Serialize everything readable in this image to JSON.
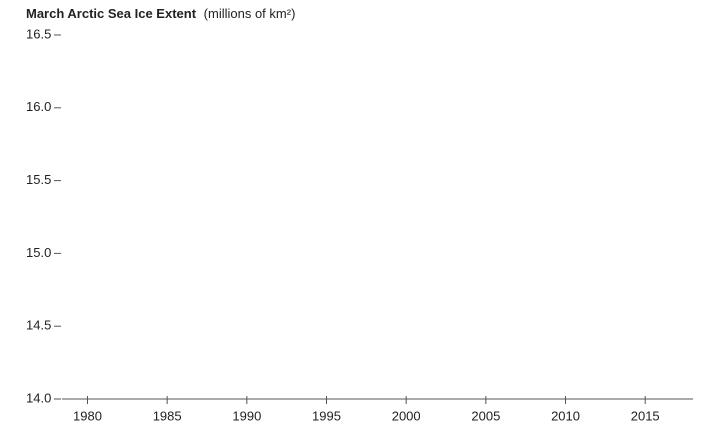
{
  "chart_data": {
    "type": "line",
    "title": "March Arctic Sea Ice Extent",
    "y_label": "(millions of km²)",
    "xlim": [
      1978.4,
      2018
    ],
    "xticks": [
      1980,
      1985,
      1990,
      1995,
      2000,
      2005,
      2010,
      2015
    ],
    "ylim": [
      14,
      16.5
    ],
    "yticks": [
      {
        "value": 14,
        "label": "14.0"
      },
      14.5,
      {
        "value": 15,
        "label": "15.0"
      },
      15.5,
      {
        "value": 16,
        "label": "16.0"
      },
      16.5
    ]
  }
}
